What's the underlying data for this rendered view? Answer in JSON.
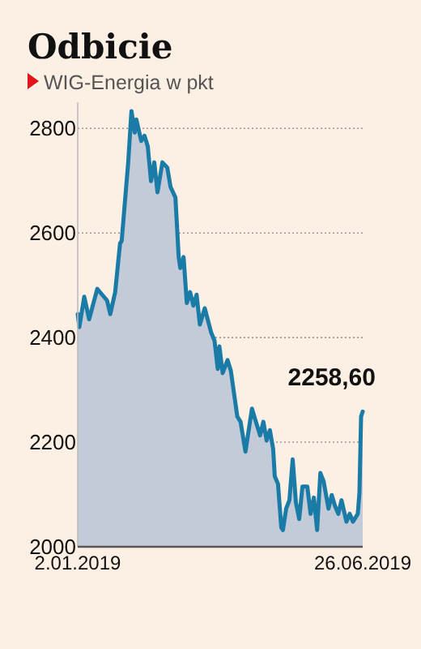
{
  "chart_data": {
    "type": "area",
    "title": "Odbicie",
    "subtitle": "WIG-Energia w pkt",
    "x": [
      "2019-01-02",
      "2019-01-03",
      "2019-01-06",
      "2019-01-09",
      "2019-01-14",
      "2019-01-17",
      "2019-01-20",
      "2019-01-22",
      "2019-01-25",
      "2019-01-28",
      "2019-01-29",
      "2019-02-02",
      "2019-02-04",
      "2019-02-06",
      "2019-02-07",
      "2019-02-10",
      "2019-02-12",
      "2019-02-14",
      "2019-02-16",
      "2019-02-18",
      "2019-02-20",
      "2019-02-23",
      "2019-02-26",
      "2019-02-28",
      "2019-03-03",
      "2019-03-05",
      "2019-03-06",
      "2019-03-08",
      "2019-03-10",
      "2019-03-12",
      "2019-03-14",
      "2019-03-16",
      "2019-03-18",
      "2019-03-21",
      "2019-03-25",
      "2019-03-27",
      "2019-03-29",
      "2019-03-30",
      "2019-04-01",
      "2019-04-04",
      "2019-04-06",
      "2019-04-10",
      "2019-04-12",
      "2019-04-15",
      "2019-04-19",
      "2019-04-22",
      "2019-04-24",
      "2019-04-26",
      "2019-04-28",
      "2019-04-30",
      "2019-05-02",
      "2019-05-03",
      "2019-05-05",
      "2019-05-07",
      "2019-05-08",
      "2019-05-10",
      "2019-05-12",
      "2019-05-14",
      "2019-05-16",
      "2019-05-18",
      "2019-05-20",
      "2019-05-23",
      "2019-05-25",
      "2019-05-27",
      "2019-05-29",
      "2019-05-31",
      "2019-06-02",
      "2019-06-05",
      "2019-06-07",
      "2019-06-09",
      "2019-06-11",
      "2019-06-13",
      "2019-06-16",
      "2019-06-18",
      "2019-06-20",
      "2019-06-23",
      "2019-06-24",
      "2019-06-25",
      "2019-06-26"
    ],
    "series": [
      {
        "color": "#1a7ba6",
        "values": [
          2445,
          2420,
          2478,
          2435,
          2493,
          2482,
          2471,
          2445,
          2487,
          2580,
          2585,
          2735,
          2833,
          2792,
          2817,
          2776,
          2786,
          2766,
          2699,
          2735,
          2678,
          2735,
          2725,
          2688,
          2668,
          2554,
          2533,
          2554,
          2466,
          2487,
          2461,
          2482,
          2425,
          2456,
          2409,
          2394,
          2340,
          2383,
          2332,
          2357,
          2337,
          2249,
          2239,
          2182,
          2264,
          2233,
          2213,
          2239,
          2203,
          2223,
          2187,
          2135,
          2120,
          2037,
          2032,
          2073,
          2089,
          2167,
          2084,
          2053,
          2115,
          2115,
          2063,
          2094,
          2032,
          2141,
          2125,
          2073,
          2099,
          2078,
          2063,
          2089,
          2048,
          2063,
          2048,
          2063,
          2104,
          2249,
          2258.6
        ]
      }
    ],
    "xlim": [
      "2019-01-02",
      "2019-06-26"
    ],
    "xticks": [
      {
        "value": "2019-01-02",
        "label": "2.01.2019"
      },
      {
        "value": "2019-06-26",
        "label": "26.06.2019"
      }
    ],
    "ylim": [
      2000,
      2850
    ],
    "yticks": [
      2000,
      2200,
      2400,
      2600,
      2800
    ],
    "grid": "y",
    "annotations": [
      {
        "text": "2258,60",
        "x": "2019-06-26",
        "y": 2258.6
      }
    ]
  }
}
